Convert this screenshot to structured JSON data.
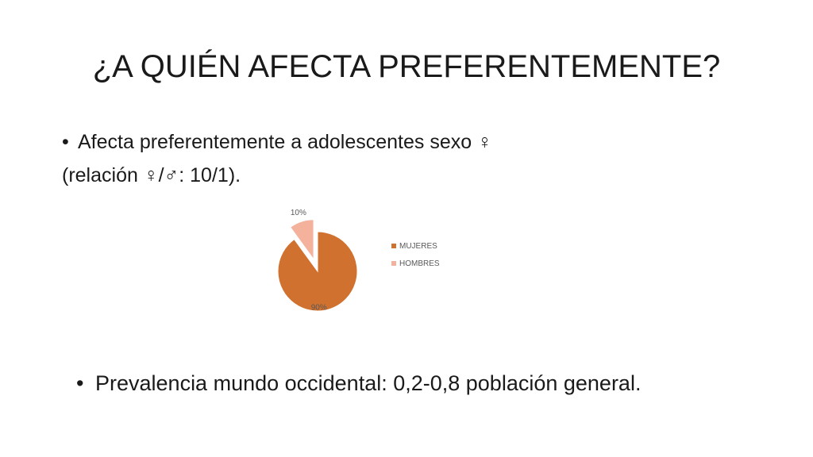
{
  "slide": {
    "title": "¿A QUIÉN AFECTA PREFERENTEMENTE?",
    "bullet_marker": "•",
    "bullet1_line1": "Afecta preferentemente a adolescentes sexo ♀",
    "bullet1_line2": "(relación ♀/♂: 10/1).",
    "bullet2": "Prevalencia mundo occidental: 0,2-0,8 población general."
  },
  "chart_data": {
    "type": "pie",
    "categories": [
      "MUJERES",
      "HOMBRES"
    ],
    "values": [
      90,
      10
    ],
    "data_labels": [
      "90%",
      "10%"
    ],
    "colors": [
      "#D0712F",
      "#F4B19C"
    ],
    "exploded": [
      "HOMBRES"
    ],
    "legend": "right"
  }
}
